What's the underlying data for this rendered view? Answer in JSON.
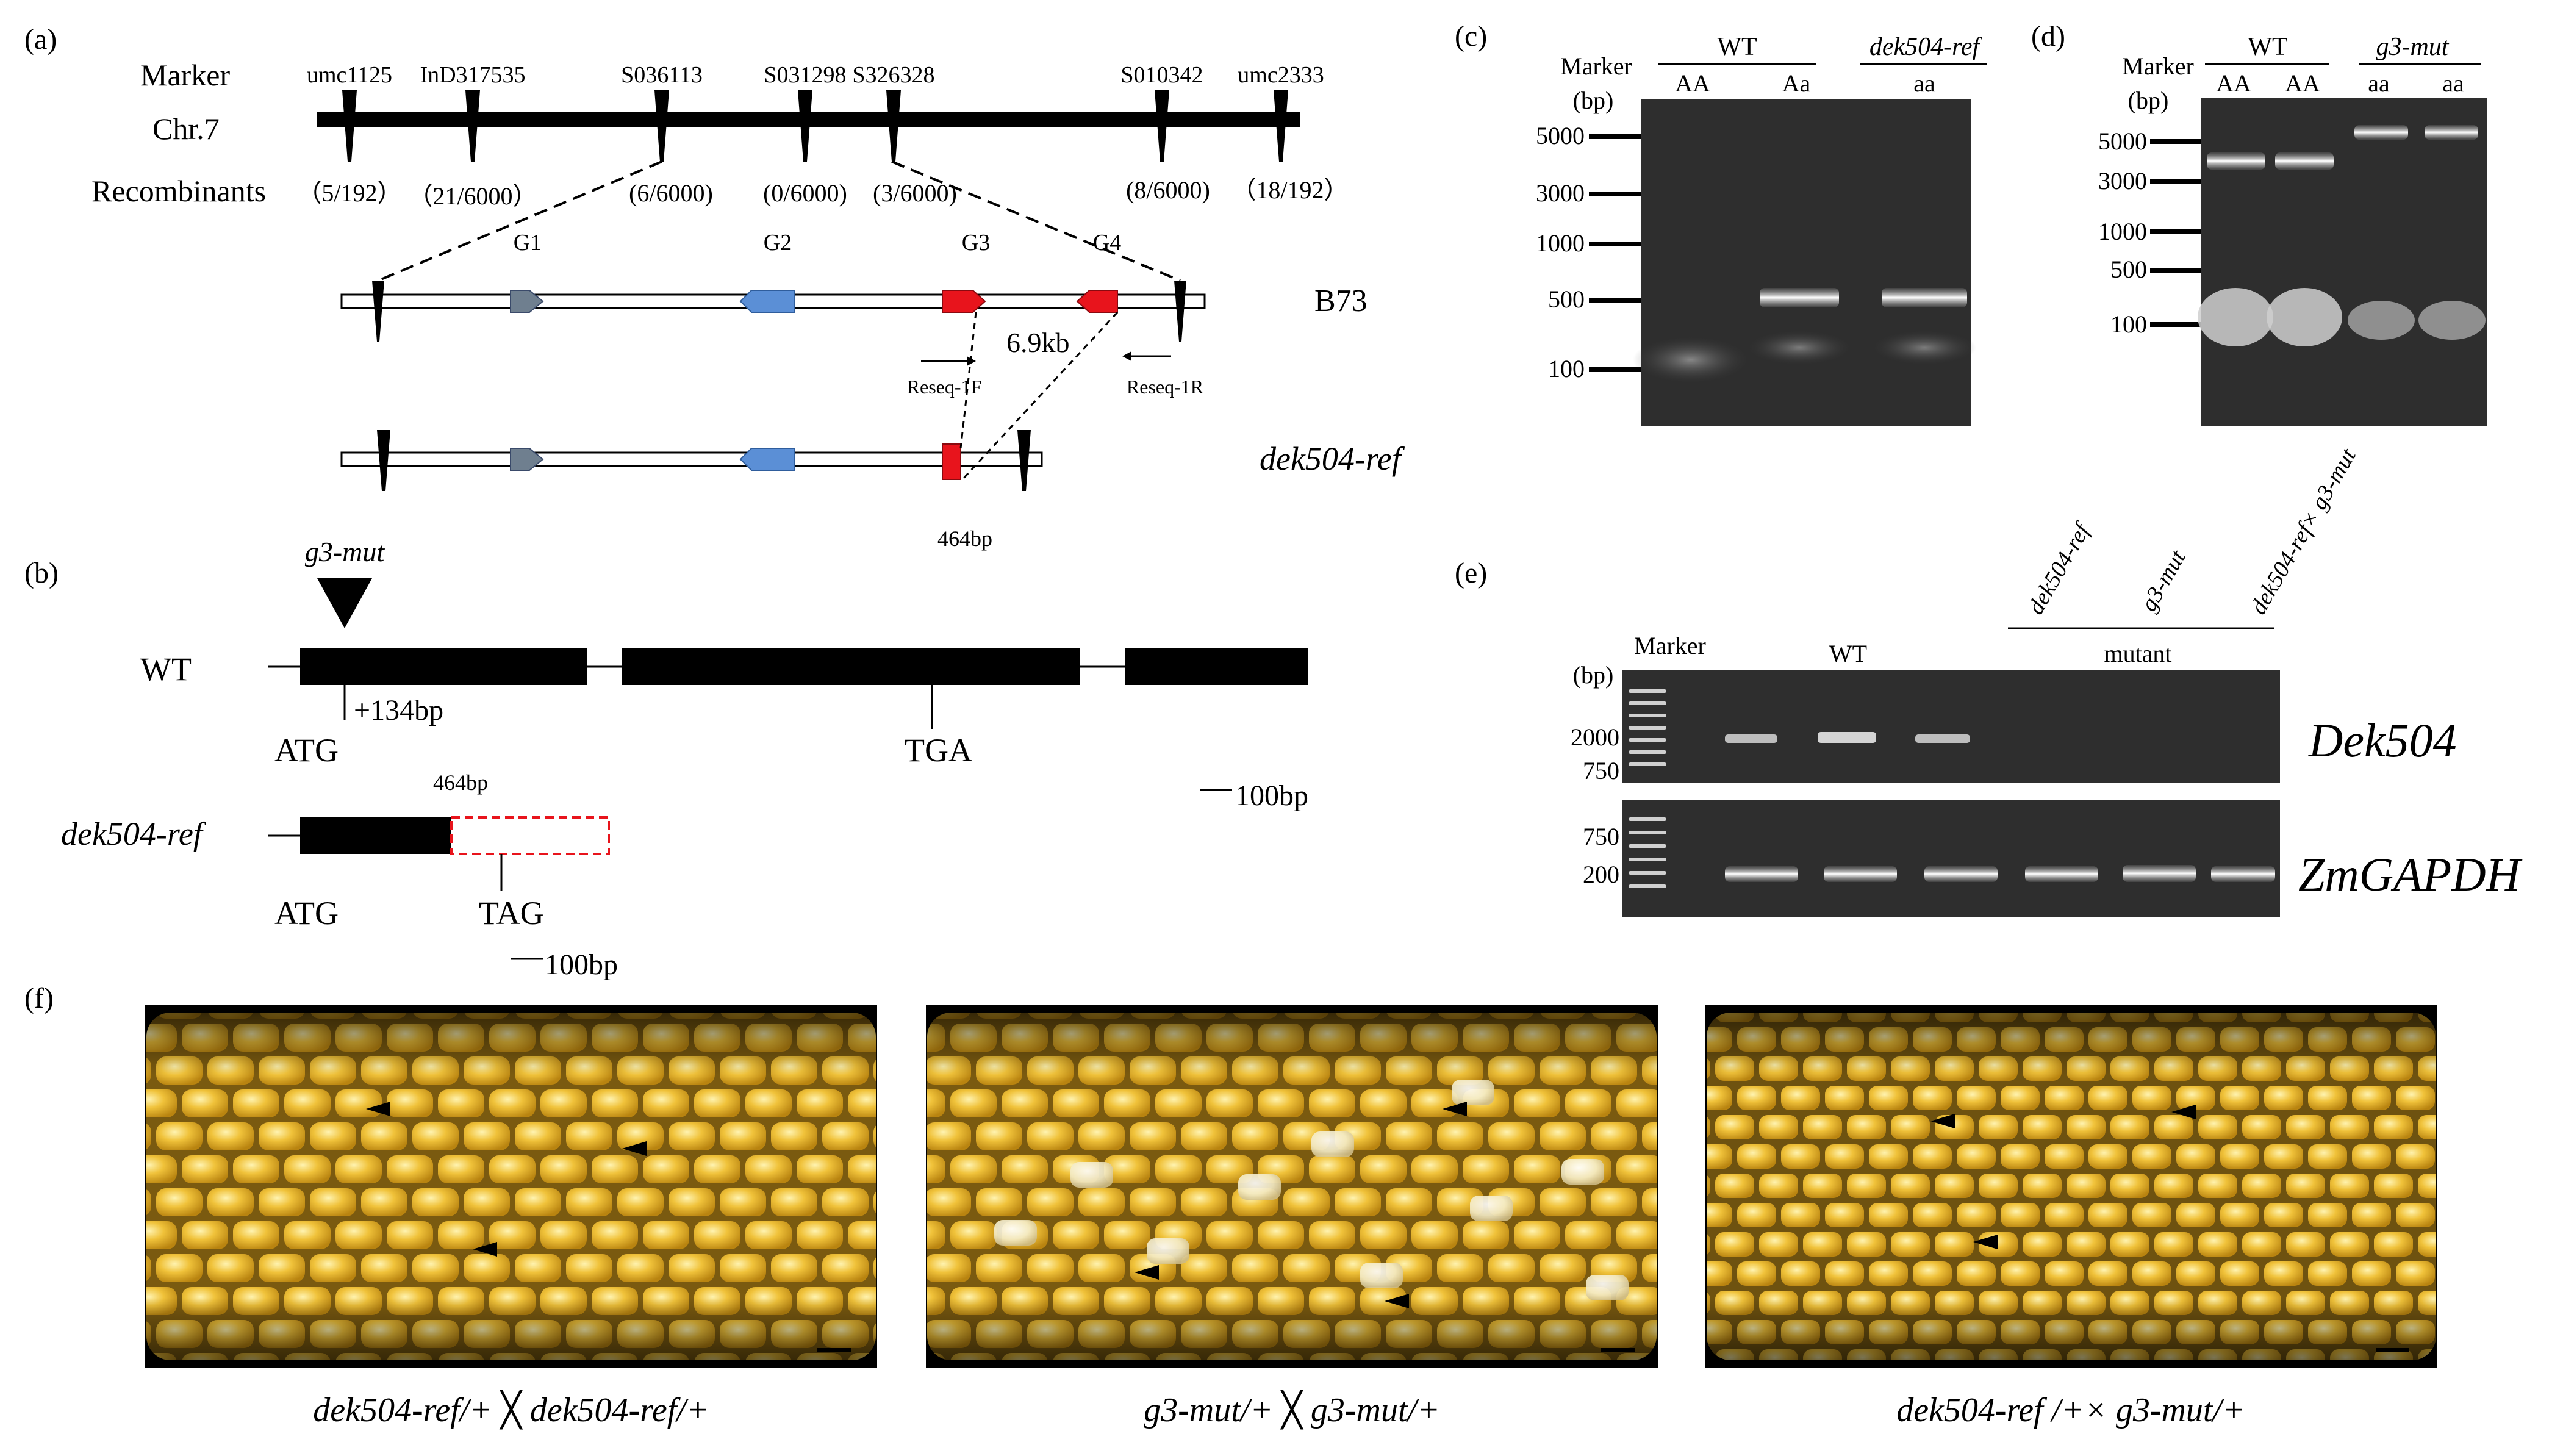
{
  "panel_a": {
    "label": "(a)",
    "marker_title": "Marker",
    "chr_label": "Chr.7",
    "recombinants_title": "Recombinants",
    "markers": [
      "umc1125",
      "InD317535",
      "S036113",
      "S031298",
      "S326328",
      "S010342",
      "umc2333"
    ],
    "recombinants": [
      "（5/192）",
      "（21/6000）",
      "(6/6000)",
      "(0/6000)",
      "(3/6000)",
      "(8/6000)",
      "（18/192）"
    ],
    "genes": [
      "G1",
      "G2",
      "G3",
      "G4"
    ],
    "b73_label": "B73",
    "size_label": "6.9kb",
    "primer_f": "Reseq-1F",
    "primer_r": "Reseq-1R",
    "mut_label": "dek504-ref",
    "mut_size": "464bp"
  },
  "panel_b": {
    "label": "(b)",
    "insertion_label": "g3-mut",
    "wt_label": "WT",
    "insert_pos": "+134bp",
    "start": "ATG",
    "stop": "TGA",
    "scale": "100bp",
    "mut_label": "dek504-ref",
    "mut_length": "464bp",
    "mut_start": "ATG",
    "mut_stop": "TAG",
    "mut_scale": "100bp"
  },
  "panel_c": {
    "label": "(c)",
    "marker_title": "Marker",
    "unit": "(bp)",
    "wt_label": "WT",
    "mut_label": "dek504-ref",
    "lanes": [
      "AA",
      "Aa",
      "aa"
    ],
    "ladder": [
      "5000",
      "3000",
      "1000",
      "500",
      "100"
    ]
  },
  "panel_d": {
    "label": "(d)",
    "marker_title": "Marker",
    "unit": "(bp)",
    "wt_label": "WT",
    "mut_label": "g3-mut",
    "lanes": [
      "AA",
      "AA",
      "aa",
      "aa"
    ],
    "ladder": [
      "5000",
      "3000",
      "1000",
      "500",
      "100"
    ]
  },
  "panel_e": {
    "label": "(e)",
    "marker_title": "Marker",
    "unit": "(bp)",
    "wt_label": "WT",
    "mut_group": "mutant",
    "mut_lanes": [
      "dek504-ref",
      "g3-mut",
      "dek504-ref× g3-mut"
    ],
    "gene1": "Dek504",
    "gene2": "ZmGAPDH",
    "ladder1": [
      "2000",
      "750"
    ],
    "ladder2": [
      "750",
      "200"
    ]
  },
  "panel_f": {
    "label": "(f)",
    "captions": [
      "dek504-ref/+ ╳ dek504-ref/+",
      "g3-mut/+ ╳ g3-mut/+",
      "dek504-ref /+× g3-mut/+"
    ]
  },
  "colors": {
    "gray_gene": "#6f7f8f",
    "blue_gene": "#5b8fd6",
    "red_gene": "#e8141c",
    "gel_bg": "#2e2e2e",
    "kernel": "#e9b425"
  }
}
